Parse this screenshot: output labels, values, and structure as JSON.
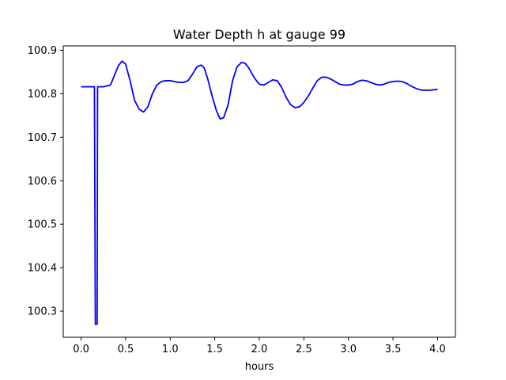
{
  "chart_data": {
    "type": "line",
    "title": "Water Depth h at gauge 99",
    "xlabel": "hours",
    "ylabel": "",
    "xlim": [
      -0.2,
      4.2
    ],
    "ylim": [
      100.24,
      100.91
    ],
    "x_ticks": [
      0.0,
      0.5,
      1.0,
      1.5,
      2.0,
      2.5,
      3.0,
      3.5,
      4.0
    ],
    "x_tick_labels": [
      "0.0",
      "0.5",
      "1.0",
      "1.5",
      "2.0",
      "2.5",
      "3.0",
      "3.5",
      "4.0"
    ],
    "y_ticks": [
      100.3,
      100.4,
      100.5,
      100.6,
      100.7,
      100.8,
      100.9
    ],
    "y_tick_labels": [
      "100.3",
      "100.4",
      "100.5",
      "100.6",
      "100.7",
      "100.8",
      "100.9"
    ],
    "grid": false,
    "series": [
      {
        "color": "#0000ff",
        "x": [
          0.0,
          0.14,
          0.15,
          0.16,
          0.165,
          0.175,
          0.18,
          0.185,
          0.19,
          0.25,
          0.33,
          0.38,
          0.42,
          0.46,
          0.5,
          0.55,
          0.6,
          0.65,
          0.7,
          0.75,
          0.8,
          0.85,
          0.9,
          0.95,
          1.0,
          1.05,
          1.1,
          1.15,
          1.2,
          1.25,
          1.3,
          1.35,
          1.38,
          1.42,
          1.47,
          1.52,
          1.56,
          1.6,
          1.65,
          1.7,
          1.75,
          1.8,
          1.84,
          1.88,
          1.92,
          1.96,
          2.0,
          2.05,
          2.1,
          2.15,
          2.2,
          2.25,
          2.3,
          2.35,
          2.4,
          2.45,
          2.5,
          2.55,
          2.6,
          2.65,
          2.7,
          2.75,
          2.8,
          2.85,
          2.9,
          2.95,
          3.0,
          3.05,
          3.1,
          3.15,
          3.2,
          3.25,
          3.3,
          3.35,
          3.4,
          3.45,
          3.5,
          3.55,
          3.6,
          3.65,
          3.7,
          3.75,
          3.8,
          3.85,
          3.9,
          3.95,
          4.0
        ],
        "y": [
          100.816,
          100.816,
          100.816,
          100.27,
          100.27,
          100.27,
          100.27,
          100.816,
          100.816,
          100.816,
          100.82,
          100.845,
          100.865,
          100.875,
          100.868,
          100.83,
          100.785,
          100.765,
          100.758,
          100.77,
          100.8,
          100.82,
          100.828,
          100.83,
          100.83,
          100.828,
          100.826,
          100.826,
          100.83,
          100.845,
          100.862,
          100.866,
          100.86,
          100.835,
          100.795,
          100.76,
          100.742,
          100.745,
          100.775,
          100.83,
          100.862,
          100.872,
          100.87,
          100.86,
          100.845,
          100.832,
          100.822,
          100.82,
          100.826,
          100.832,
          100.83,
          100.815,
          100.792,
          100.775,
          100.768,
          100.77,
          100.78,
          100.795,
          100.813,
          100.83,
          100.838,
          100.838,
          100.834,
          100.828,
          100.822,
          100.82,
          100.82,
          100.822,
          100.828,
          100.831,
          100.83,
          100.826,
          100.822,
          100.82,
          100.822,
          100.826,
          100.828,
          100.829,
          100.828,
          100.824,
          100.818,
          100.813,
          100.809,
          100.808,
          100.808,
          100.809,
          100.81
        ]
      }
    ]
  }
}
